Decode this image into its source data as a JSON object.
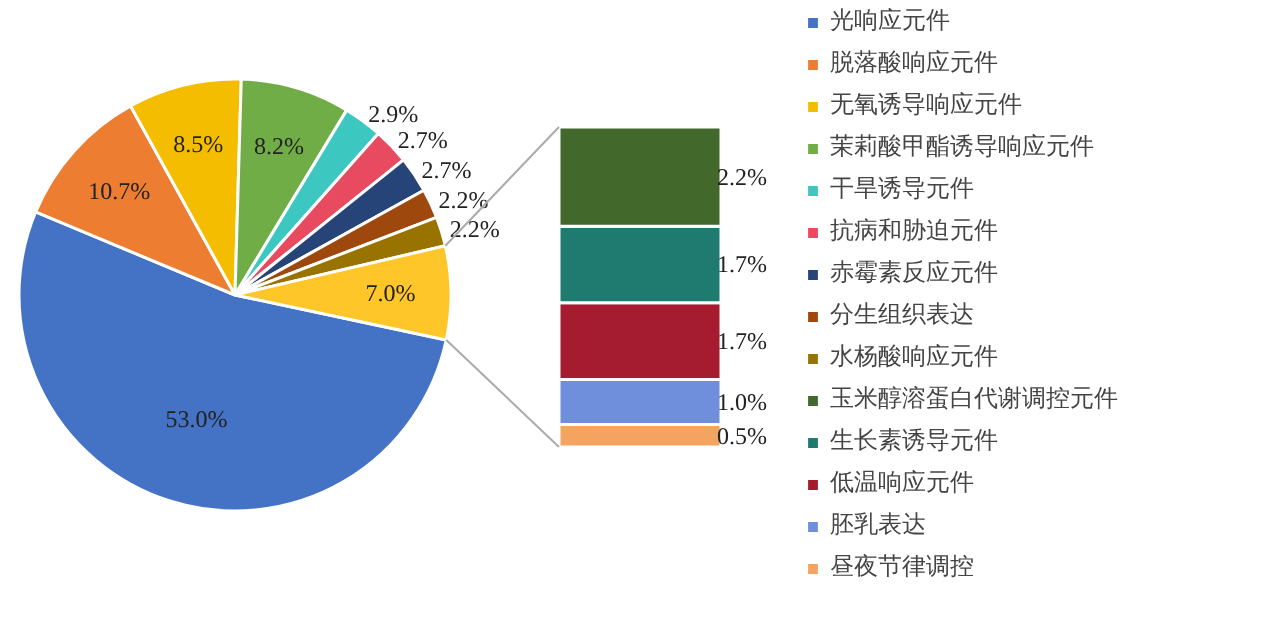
{
  "chart_data": [
    {
      "type": "pie",
      "categories": [
        "光响应元件",
        "脱落酸响应元件",
        "无氧诱导响应元件",
        "茉莉酸甲酯诱导响应元件",
        "干旱诱导元件",
        "抗病和胁迫元件",
        "赤霉素反应元件",
        "分生组织表达",
        "水杨酸响应元件",
        null
      ],
      "values": [
        53.0,
        10.7,
        8.5,
        8.2,
        2.9,
        2.7,
        2.7,
        2.2,
        2.2,
        7.0
      ],
      "value_labels": [
        "53.0%",
        "10.7%",
        "8.5%",
        "8.2%",
        "2.9%",
        "2.7%",
        "2.7%",
        "2.2%",
        "2.2%",
        "7.0%"
      ],
      "colors": [
        "#4472c4",
        "#ed7d31",
        "#f5bd00",
        "#70ad47",
        "#3cc8c0",
        "#e84a5f",
        "#264478",
        "#9e480e",
        "#997300",
        "#ffc629"
      ],
      "legend": "right"
    },
    {
      "type": "bar",
      "stacked": true,
      "categories": [
        null
      ],
      "legend": "right",
      "series": [
        {
          "name": "昼夜节律调控",
          "color": "#f4a460",
          "values": [
            0.5
          ],
          "value_labels": [
            "0.5%"
          ]
        },
        {
          "name": "胚乳表达",
          "color": "#6f8fdc",
          "values": [
            1.0
          ],
          "value_labels": [
            "1.0%"
          ]
        },
        {
          "name": "低温响应元件",
          "color": "#a51c30",
          "values": [
            1.7
          ],
          "value_labels": [
            "1.7%"
          ]
        },
        {
          "name": "生长素诱导元件",
          "color": "#1f7a70",
          "values": [
            1.7
          ],
          "value_labels": [
            "1.7%"
          ]
        },
        {
          "name": "玉米醇溶蛋白代谢调控元件",
          "color": "#43682b",
          "values": [
            2.2
          ],
          "value_labels": [
            "2.2%"
          ]
        }
      ]
    }
  ]
}
